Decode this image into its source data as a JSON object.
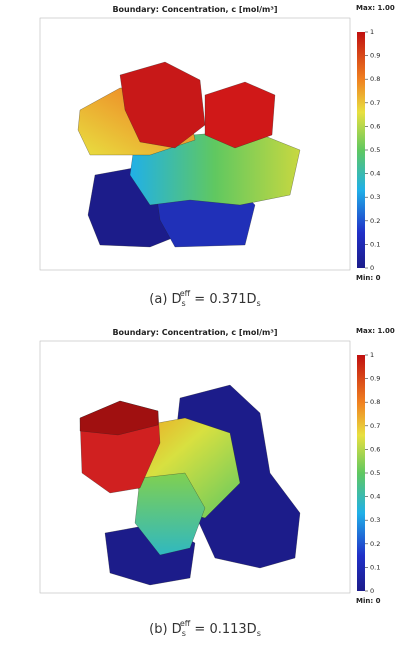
{
  "chart_data": [
    {
      "type": "surface",
      "title": "Boundary: Concentration, c [mol/m³]",
      "max_label": "Max: 1.00",
      "min_label": "Min: 0",
      "clim": [
        0,
        1
      ],
      "cticks": [
        0,
        0.1,
        0.2,
        0.3,
        0.4,
        0.5,
        0.6,
        0.7,
        0.8,
        0.9,
        1
      ],
      "caption": {
        "prefix": "(a) D",
        "sub": "s",
        "sup": "eff",
        "rest": " = 0.371D",
        "sub2": "s"
      }
    },
    {
      "type": "surface",
      "title": "Boundary: Concentration, c [mol/m³]",
      "max_label": "Max: 1.00",
      "min_label": "Min: 0",
      "clim": [
        0,
        1
      ],
      "cticks": [
        0,
        0.1,
        0.2,
        0.3,
        0.4,
        0.5,
        0.6,
        0.7,
        0.8,
        0.9,
        1
      ],
      "caption": {
        "prefix": "(b) D",
        "sub": "s",
        "sup": "eff",
        "rest": " = 0.113D",
        "sub2": "s"
      }
    }
  ]
}
